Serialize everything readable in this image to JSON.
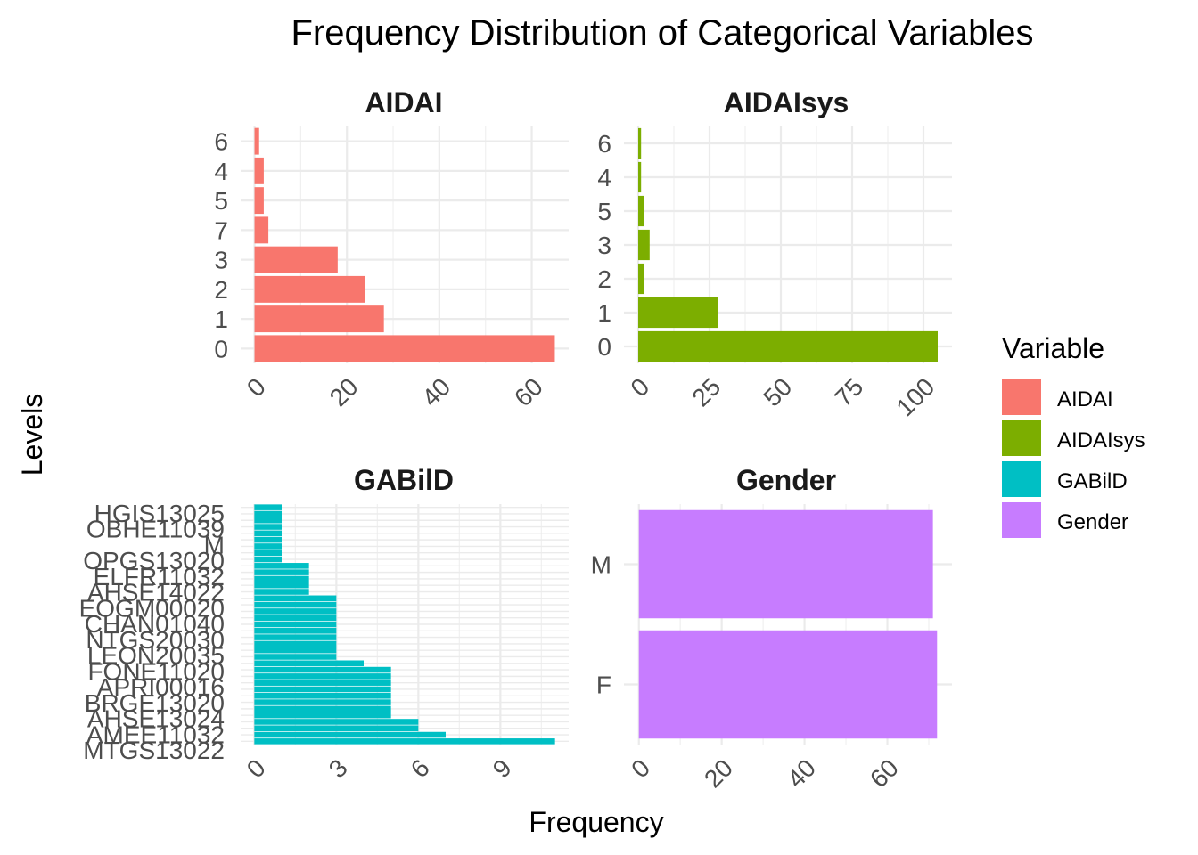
{
  "chart_data": {
    "type": "bar",
    "orientation": "horizontal",
    "title": "Frequency Distribution of Categorical Variables",
    "xlabel": "Frequency",
    "ylabel": "Levels",
    "grid": true,
    "legend": {
      "title": "Variable",
      "placement": "right",
      "entries": [
        {
          "name": "AIDAI",
          "color": "#F8766D"
        },
        {
          "name": "AIDAIsys",
          "color": "#7CAE00"
        },
        {
          "name": "GABilD",
          "color": "#00BFC4"
        },
        {
          "name": "Gender",
          "color": "#C77CFF"
        }
      ]
    },
    "panels": [
      {
        "title": "AIDAI",
        "color": "#F8766D",
        "categories": [
          "0",
          "1",
          "2",
          "3",
          "7",
          "5",
          "4",
          "6"
        ],
        "values": [
          65,
          28,
          24,
          18,
          3,
          2,
          2,
          1
        ],
        "xlim": [
          -3,
          68
        ],
        "xticks": [
          0,
          20,
          40,
          60
        ],
        "xtick_labels": [
          "0",
          "20",
          "40",
          "60"
        ]
      },
      {
        "title": "AIDAIsys",
        "color": "#7CAE00",
        "categories": [
          "0",
          "1",
          "2",
          "3",
          "5",
          "4",
          "6"
        ],
        "values": [
          105,
          28,
          2,
          4,
          2,
          1,
          1
        ],
        "xlim": [
          -5,
          110
        ],
        "xticks": [
          0,
          25,
          50,
          75,
          100
        ],
        "xtick_labels": [
          "0",
          "25",
          "50",
          "75",
          "100"
        ]
      },
      {
        "title": "GABilD",
        "color": "#00BFC4",
        "categories_note": "37 overlapping levels; only these labels are legible",
        "visible_labels": [
          "HGIS13025",
          "OBHE11039",
          "M",
          "OPGS13020",
          "ELFR11032",
          "AHSE14022",
          "EOGM00020",
          "CHAN01040",
          "NTGS20030",
          "LEON20035",
          "FONE11020",
          "APRI00016",
          "BRGE13020",
          "AHSE13024",
          "AMEE11032",
          "MTGS13022"
        ],
        "values": [
          11,
          7,
          6,
          6,
          5,
          5,
          5,
          5,
          5,
          5,
          5,
          5,
          4,
          3,
          3,
          3,
          3,
          3,
          3,
          3,
          3,
          3,
          3,
          2,
          2,
          2,
          2,
          2,
          1,
          1,
          1,
          1,
          1,
          1,
          1,
          1,
          1
        ],
        "xlim": [
          -0.5,
          11.5
        ],
        "xticks": [
          0,
          3,
          6,
          9
        ],
        "xtick_labels": [
          "0",
          "3",
          "6",
          "9"
        ]
      },
      {
        "title": "Gender",
        "color": "#C77CFF",
        "categories": [
          "F",
          "M"
        ],
        "values": [
          72,
          71
        ],
        "xlim": [
          -3.6,
          75.6
        ],
        "xticks": [
          0,
          20,
          40,
          60
        ],
        "xtick_labels": [
          "0",
          "20",
          "40",
          "60"
        ]
      }
    ]
  }
}
